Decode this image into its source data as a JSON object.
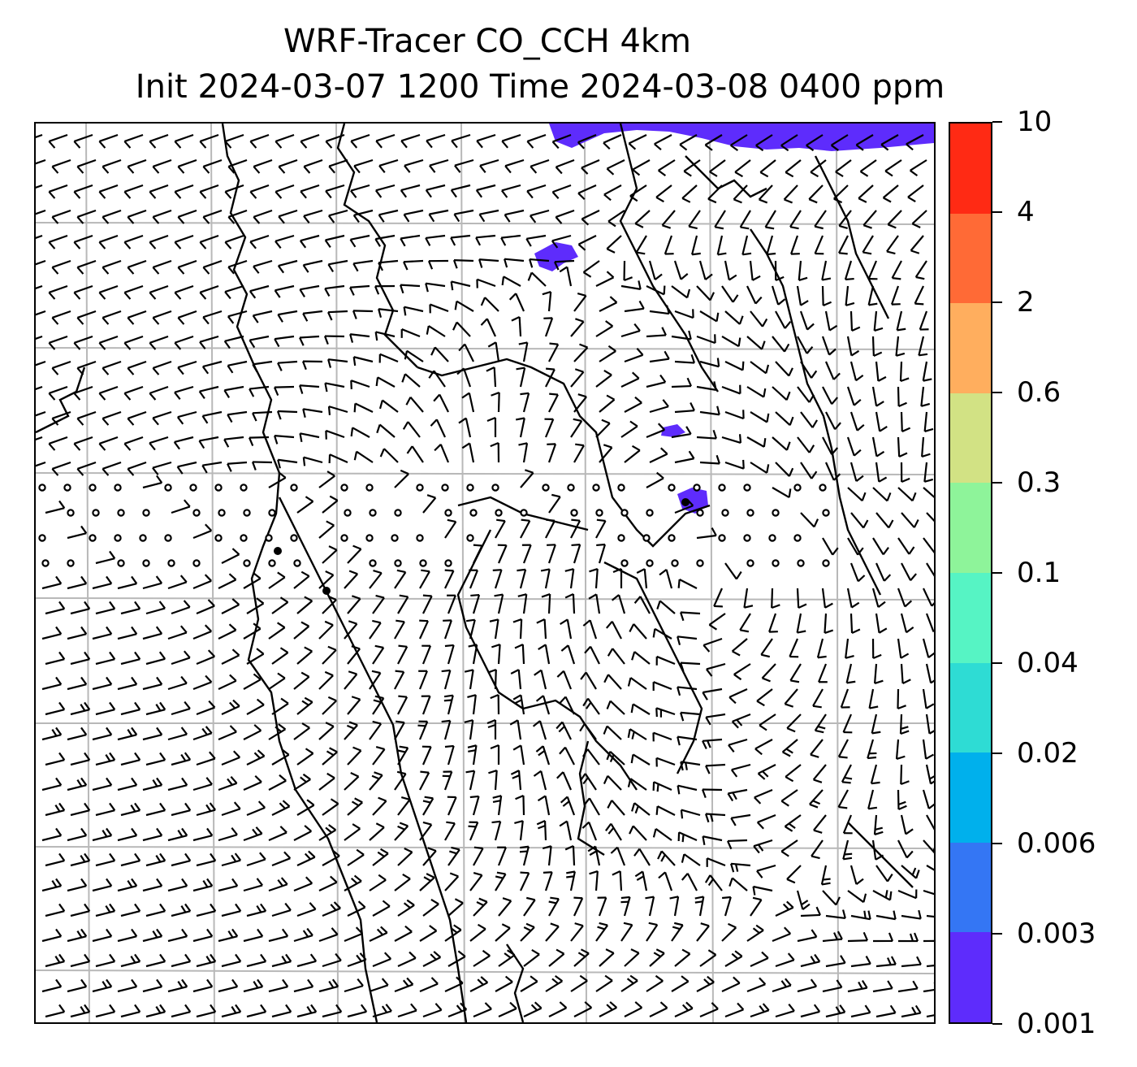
{
  "title": {
    "line1": "WRF-Tracer CO_CCH 4km",
    "line2": "Init 2024-03-07 1200 Time 2024-03-08 0400 ppm"
  },
  "colorbar": {
    "labels": [
      "10",
      "4",
      "2",
      "0.6",
      "0.3",
      "0.1",
      "0.04",
      "0.02",
      "0.006",
      "0.003",
      "0.001"
    ],
    "colors": [
      "#ff2a14",
      "#ff6a36",
      "#ffae5e",
      "#d2e284",
      "#8ef49a",
      "#56f4c4",
      "#2edcd4",
      "#00b0ec",
      "#3476f4",
      "#5e2cfc"
    ]
  },
  "map": {
    "gridline_color": "#b8b8b8",
    "barb_color": "#000000",
    "tracer_color": "#5e2cfc"
  }
}
